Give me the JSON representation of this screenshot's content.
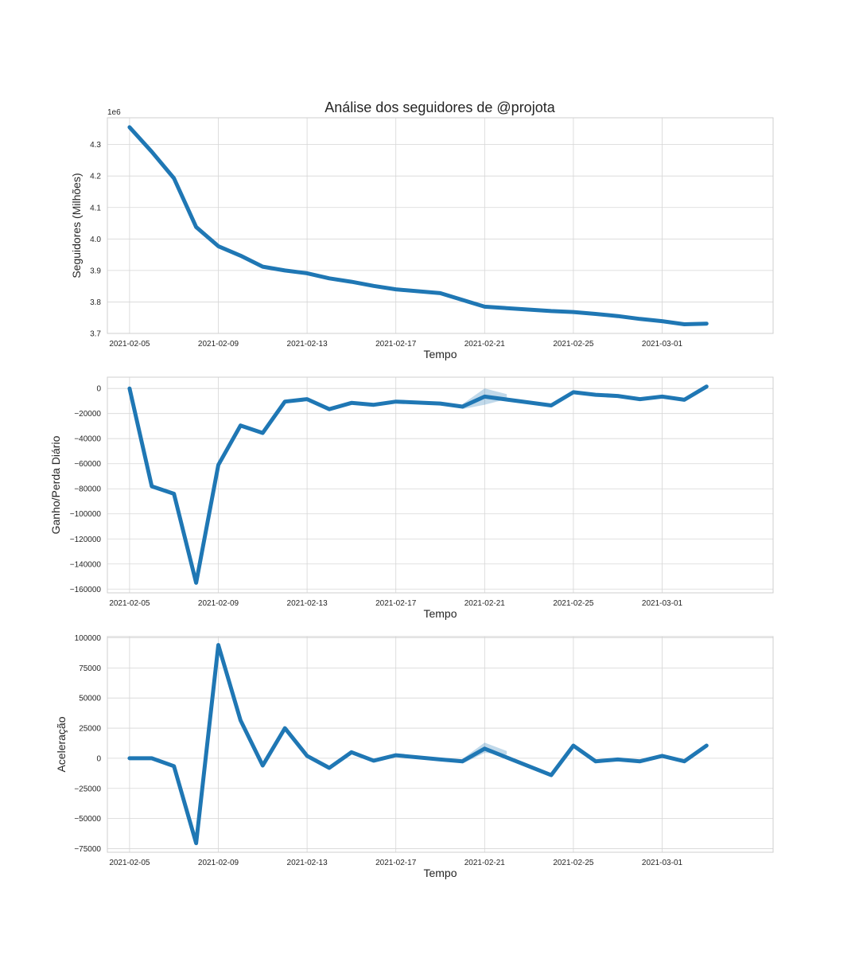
{
  "title": "Análise dos seguidores de @projota",
  "colors": {
    "line": "#1f77b4",
    "band": "#1f77b4",
    "grid": "#d6d6d6",
    "frame": "#cfcfcf"
  },
  "chart_data": [
    {
      "type": "line",
      "title": "Análise dos seguidores de @projota",
      "xlabel": "Tempo",
      "ylabel": "Seguidores (Milhões)",
      "y_offset_label": "1e6",
      "x_axis": "date",
      "xlim": [
        "2021-02-04",
        "2021-03-06"
      ],
      "xticks": [
        "2021-02-05",
        "2021-02-09",
        "2021-02-13",
        "2021-02-17",
        "2021-02-21",
        "2021-02-25",
        "2021-03-01"
      ],
      "ylim": [
        3.7,
        4.385
      ],
      "yticks": [
        "3.7",
        "3.8",
        "3.9",
        "4.0",
        "4.1",
        "4.2",
        "4.3"
      ],
      "grid": true,
      "series": [
        {
          "x": [
            "2021-02-05",
            "2021-02-06",
            "2021-02-07",
            "2021-02-08",
            "2021-02-09",
            "2021-02-10",
            "2021-02-11",
            "2021-02-12",
            "2021-02-13",
            "2021-02-14",
            "2021-02-15",
            "2021-02-16",
            "2021-02-17",
            "2021-02-19",
            "2021-02-21",
            "2021-02-24",
            "2021-02-25",
            "2021-02-26",
            "2021-02-27",
            "2021-02-28",
            "2021-03-01",
            "2021-03-02",
            "2021-03-03"
          ],
          "y": [
            4.355,
            4.277,
            4.193,
            4.038,
            3.977,
            3.947,
            3.912,
            3.9,
            3.891,
            3.875,
            3.864,
            3.851,
            3.84,
            3.828,
            3.785,
            3.771,
            3.768,
            3.762,
            3.755,
            3.746,
            3.739,
            3.729,
            3.731
          ]
        }
      ]
    },
    {
      "type": "line",
      "xlabel": "Tempo",
      "ylabel": "Ganho/Perda Diário",
      "x_axis": "date",
      "xlim": [
        "2021-02-04",
        "2021-03-06"
      ],
      "xticks": [
        "2021-02-05",
        "2021-02-09",
        "2021-02-13",
        "2021-02-17",
        "2021-02-21",
        "2021-02-25",
        "2021-03-01"
      ],
      "ylim": [
        -163000,
        9000
      ],
      "yticks": [
        "0",
        "−20000",
        "−40000",
        "−60000",
        "−80000",
        "−100000",
        "−120000",
        "−140000",
        "−160000"
      ],
      "grid": true,
      "series": [
        {
          "x": [
            "2021-02-05",
            "2021-02-06",
            "2021-02-07",
            "2021-02-08",
            "2021-02-09",
            "2021-02-10",
            "2021-02-11",
            "2021-02-12",
            "2021-02-13",
            "2021-02-14",
            "2021-02-15",
            "2021-02-16",
            "2021-02-17",
            "2021-02-19",
            "2021-02-20",
            "2021-02-21",
            "2021-02-24",
            "2021-02-25",
            "2021-02-26",
            "2021-02-27",
            "2021-02-28",
            "2021-03-01",
            "2021-03-02",
            "2021-03-03"
          ],
          "y": [
            0,
            -78000,
            -84000,
            -155000,
            -61000,
            -29500,
            -35500,
            -10500,
            -8500,
            -16500,
            -11500,
            -13000,
            -10500,
            -12000,
            -14500,
            -6500,
            -13500,
            -3000,
            -5000,
            -6000,
            -8500,
            -6500,
            -9000,
            1500
          ],
          "band": {
            "x": [
              "2021-02-20",
              "2021-02-21",
              "2021-02-22"
            ],
            "low": [
              -16500,
              -13000,
              -8500
            ],
            "high": [
              -12500,
              0,
              -4500
            ]
          }
        }
      ]
    },
    {
      "type": "line",
      "xlabel": "Tempo",
      "ylabel": "Aceleração",
      "x_axis": "date",
      "xlim": [
        "2021-02-04",
        "2021-03-06"
      ],
      "xticks": [
        "2021-02-05",
        "2021-02-09",
        "2021-02-13",
        "2021-02-17",
        "2021-02-21",
        "2021-02-25",
        "2021-03-01"
      ],
      "ylim": [
        -78000,
        101000
      ],
      "yticks": [
        "100000",
        "75000",
        "50000",
        "25000",
        "0",
        "−25000",
        "−50000",
        "−75000"
      ],
      "grid": true,
      "series": [
        {
          "x": [
            "2021-02-05",
            "2021-02-06",
            "2021-02-07",
            "2021-02-08",
            "2021-02-09",
            "2021-02-10",
            "2021-02-11",
            "2021-02-12",
            "2021-02-13",
            "2021-02-14",
            "2021-02-15",
            "2021-02-16",
            "2021-02-17",
            "2021-02-19",
            "2021-02-20",
            "2021-02-21",
            "2021-02-24",
            "2021-02-25",
            "2021-02-26",
            "2021-02-27",
            "2021-02-28",
            "2021-03-01",
            "2021-03-02",
            "2021-03-03"
          ],
          "y": [
            0,
            0,
            -6500,
            -70500,
            94000,
            31500,
            -6000,
            25000,
            2000,
            -8000,
            5000,
            -2000,
            2500,
            -1000,
            -2500,
            8000,
            -14000,
            10500,
            -2500,
            -1000,
            -2500,
            2000,
            -2500,
            10500
          ],
          "band": {
            "x": [
              "2021-02-20",
              "2021-02-21",
              "2021-02-22"
            ],
            "low": [
              -4500,
              4500,
              3000
            ],
            "high": [
              -500,
              13000,
              6000
            ]
          }
        }
      ]
    }
  ]
}
